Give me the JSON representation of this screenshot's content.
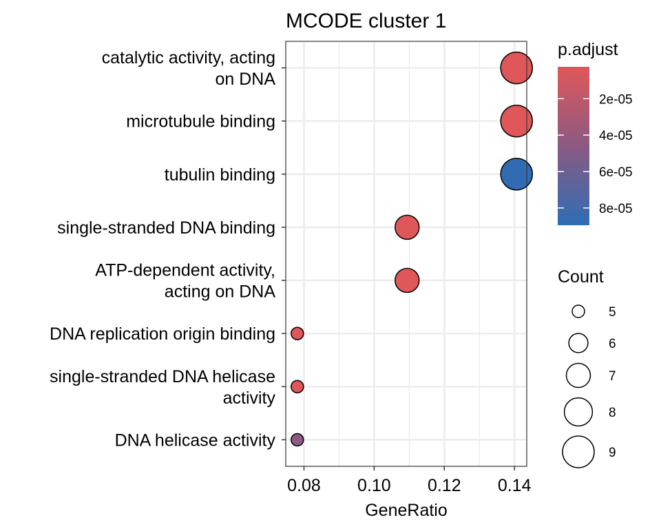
{
  "chart_data": {
    "type": "scatter",
    "title": "MCODE cluster 1",
    "xlabel": "GeneRatio",
    "ylabel": "",
    "xlim": [
      0.0748,
      0.1435
    ],
    "xticks": [
      0.08,
      0.1,
      0.12,
      0.14
    ],
    "xtick_labels": [
      "0.08",
      "0.10",
      "0.12",
      "0.14"
    ],
    "grid": true,
    "categories": [
      "catalytic activity, acting\non DNA",
      "microtubule binding",
      "tubulin binding",
      "single-stranded DNA binding",
      "ATP-dependent activity,\nacting on DNA",
      "DNA replication origin binding",
      "single-stranded DNA helicase\nactivity",
      "DNA helicase activity"
    ],
    "points": [
      {
        "category": "catalytic activity, acting\non DNA",
        "x": 0.1406,
        "count": 9,
        "p_adjust": 2.8e-06
      },
      {
        "category": "microtubule binding",
        "x": 0.1406,
        "count": 9,
        "p_adjust": 2.8e-06
      },
      {
        "category": "tubulin binding",
        "x": 0.1406,
        "count": 9,
        "p_adjust": 8.8e-05
      },
      {
        "category": "single-stranded DNA binding",
        "x": 0.1094,
        "count": 7,
        "p_adjust": 2.8e-06
      },
      {
        "category": "ATP-dependent activity,\nacting on DNA",
        "x": 0.1094,
        "count": 7,
        "p_adjust": 2.8e-06
      },
      {
        "category": "DNA replication origin binding",
        "x": 0.0781,
        "count": 5,
        "p_adjust": 3e-06
      },
      {
        "category": "single-stranded DNA helicase\nactivity",
        "x": 0.0781,
        "count": 5,
        "p_adjust": 3e-06
      },
      {
        "category": "DNA helicase activity",
        "x": 0.0781,
        "count": 5,
        "p_adjust": 4.5e-05
      }
    ],
    "color_legend": {
      "title": "p.adjust",
      "range": [
        2.5e-06,
        8.95e-05
      ],
      "ticks": [
        2e-05,
        4e-05,
        6e-05,
        8e-05
      ],
      "tick_labels": [
        "2e-05",
        "4e-05",
        "6e-05",
        "8e-05"
      ],
      "low_color": "#E15759",
      "mid_color": "#8A5A83",
      "high_color": "#2E6DB4"
    },
    "size_legend": {
      "title": "Count",
      "values": [
        5,
        6,
        7,
        8,
        9
      ],
      "labels": [
        "5",
        "6",
        "7",
        "8",
        "9"
      ]
    },
    "colors": {
      "panel_border": "#333333",
      "gridline": "#EBEBEB",
      "point_stroke": "#000000"
    }
  }
}
